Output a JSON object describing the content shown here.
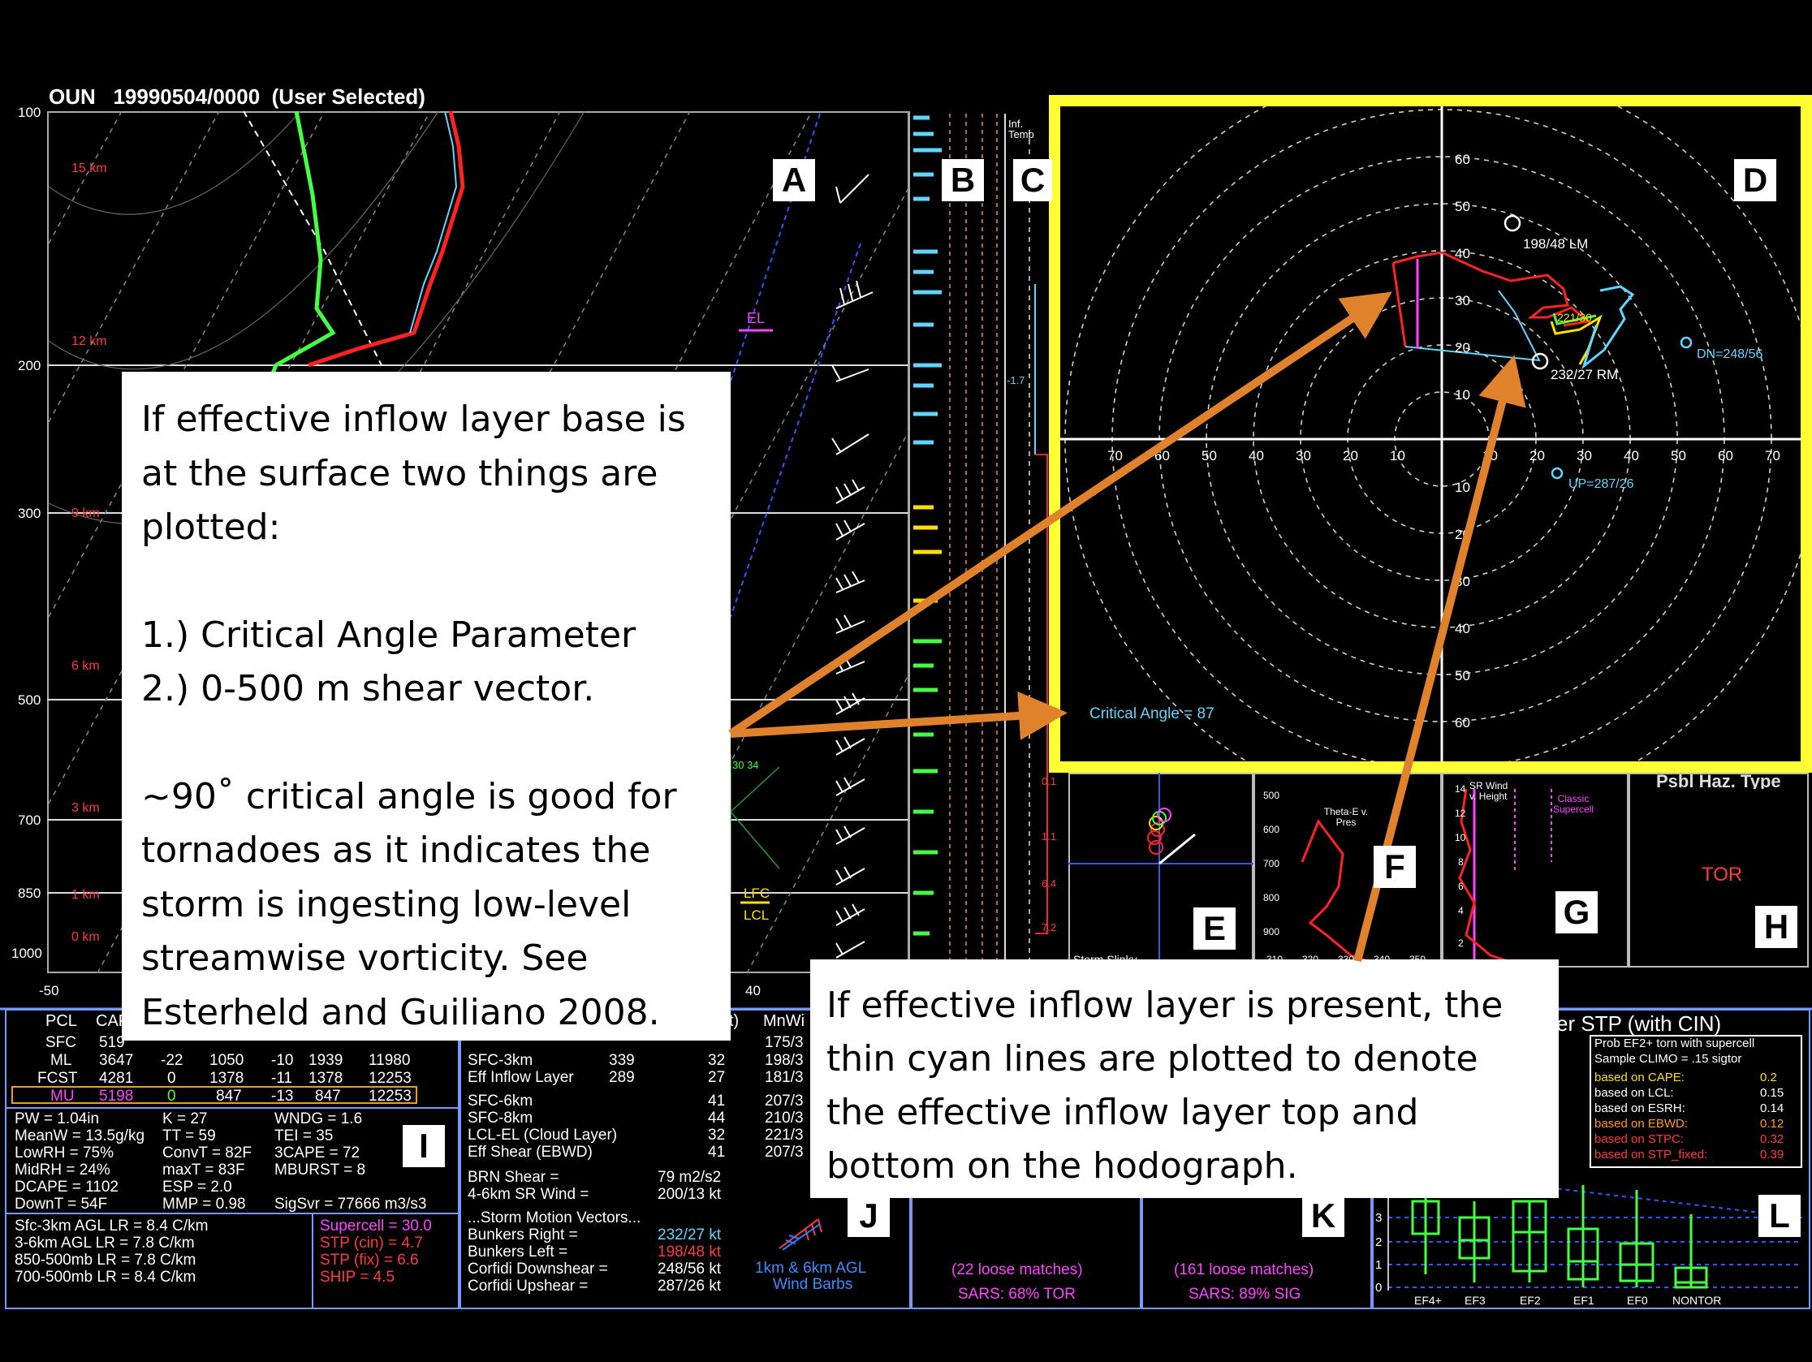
{
  "header": {
    "title": "OUN   19990504/0000  (User Selected)"
  },
  "colors": {
    "accent_yellow": "#ffff33",
    "arrow_orange": "#e0822b",
    "cyan": "#5fd6ff",
    "panel_border": "#bbbbbb"
  },
  "skewt": {
    "pressure_labels": [
      "100",
      "200",
      "300",
      "500",
      "700",
      "850",
      "1000"
    ],
    "height_labels": [
      "15 km",
      "12 km",
      "9 km",
      "6 km",
      "3 km",
      "1 km",
      "0 km"
    ],
    "temp_axis": [
      "-50",
      "40"
    ],
    "el_label": "EL",
    "lfc_label": "LFC",
    "lcl_label": "LCL",
    "hodo_small_label": "30 34"
  },
  "panel_labels": {
    "A": "A",
    "B": "B",
    "C": "C",
    "D": "D",
    "E": "E",
    "F": "F",
    "G": "G",
    "H": "H",
    "I": "I",
    "J": "J",
    "K": "K",
    "L": "L"
  },
  "column_c": {
    "header": "Inf. Temp Adv. (C",
    "value": "-1.7",
    "values": [
      "0.1",
      "1.1",
      "6.4",
      "7.2"
    ]
  },
  "hodograph": {
    "y_ticks_up": [
      "60",
      "50",
      "40",
      "30",
      "20",
      "10"
    ],
    "y_ticks_down": [
      "10",
      "20",
      "30",
      "40",
      "50",
      "60"
    ],
    "x_ticks_left": [
      "70",
      "60",
      "50",
      "40",
      "30",
      "20",
      "10"
    ],
    "x_ticks_right": [
      "10",
      "20",
      "30",
      "40",
      "50",
      "60",
      "70"
    ],
    "lm_label": "198/48 LM",
    "rm_label": "232/27 RM",
    "dn_label": "DN=248/56",
    "up_label": "UP=287/26",
    "mean_label": "221/30",
    "critical_angle": "Critical Angle = 87"
  },
  "callout_main": {
    "lines": [
      "If effective inflow layer base is",
      "at the surface two things are",
      "plotted:",
      "",
      "1.) Critical Angle Parameter",
      "2.) 0-500 m shear vector.",
      "",
      "~90˚ critical angle is good for",
      "tornadoes as it indicates the",
      "storm is ingesting low-level",
      "streamwise vorticity.  See",
      "Esterheld and Guiliano 2008."
    ]
  },
  "callout_lower": {
    "lines": [
      "If effective inflow layer is present, the",
      "thin cyan lines are plotted to denote",
      "the effective inflow layer top and",
      "bottom on the hodograph."
    ]
  },
  "panel_e": {
    "footer": "Storm Slinky"
  },
  "panel_f": {
    "title": "Theta-E v. Pres",
    "y_ticks": [
      "500",
      "600",
      "700",
      "800",
      "900"
    ],
    "x_ticks": [
      "310",
      "320",
      "330",
      "340",
      "350"
    ]
  },
  "panel_g": {
    "title": "SR Wind v. Height",
    "y_ticks": [
      "14",
      "12",
      "10",
      "8",
      "6",
      "4",
      "2"
    ],
    "legend": "Classic Supercell"
  },
  "panel_h": {
    "title": "Psbl Haz. Type",
    "value": "TOR"
  },
  "parcel_table": {
    "headers": [
      "PCL",
      "CAPE"
    ],
    "rows": [
      {
        "name": "SFC",
        "cape": "519",
        "vals": []
      },
      {
        "name": "ML",
        "cape": "3647",
        "vals": [
          "-22",
          "1050",
          "-10",
          "1939",
          "11980"
        ]
      },
      {
        "name": "FCST",
        "cape": "4281",
        "vals": [
          "0",
          "1378",
          "-11",
          "1378",
          "12253"
        ]
      },
      {
        "name": "MU",
        "cape": "5198",
        "vals": [
          "0",
          "847",
          "-13",
          "847",
          "12253"
        ]
      }
    ]
  },
  "indices": [
    [
      "PW = 1.04in",
      "K = 27",
      "WNDG = 1.6"
    ],
    [
      "MeanW = 13.5g/kg",
      "TT = 59",
      "TEI = 35"
    ],
    [
      "LowRH = 75%",
      "ConvT = 82F",
      "3CAPE = 72"
    ],
    [
      "MidRH = 24%",
      "maxT = 83F",
      "MBURST = 8"
    ],
    [
      "DCAPE = 1102",
      "ESP = 2.0",
      ""
    ],
    [
      "DownT = 54F",
      "MMP = 0.98",
      "SigSvr = 77666 m3/s3"
    ]
  ],
  "lapse_rates": [
    "Sfc-3km AGL LR = 8.4 C/km",
    "3-6km AGL LR = 7.8 C/km",
    "850-500mb LR = 7.8 C/km",
    "700-500mb LR = 8.4 C/km"
  ],
  "composites": [
    "Supercell = 30.0",
    "STP (cin) = 4.7",
    "STP (fix) = 6.6",
    "SHIP = 4.5"
  ],
  "kinematics": {
    "header_mid": "t)",
    "header_right": "MnWi",
    "rows": [
      {
        "label": "SFC-3km",
        "a": "339",
        "b": "32",
        "c": "198/3"
      },
      {
        "label": "Eff Inflow Layer",
        "a": "289",
        "b": "27",
        "c": "181/3"
      },
      {
        "label": "SFC-6km",
        "a": "",
        "b": "41",
        "c": "207/3"
      },
      {
        "label": "SFC-8km",
        "a": "",
        "b": "44",
        "c": "210/3"
      },
      {
        "label": "LCL-EL (Cloud Layer)",
        "a": "",
        "b": "32",
        "c": "221/3"
      },
      {
        "label": "Eff Shear (EBWD)",
        "a": "",
        "b": "41",
        "c": "207/3"
      }
    ],
    "top_extra": "175/3",
    "brn_label": "BRN Shear =",
    "brn_val": "79 m2/s2",
    "srw_label": "4-6km SR Wind =",
    "srw_val": "200/13 kt",
    "motion_title": "...Storm Motion Vectors...",
    "motions": [
      {
        "label": "Bunkers Right =",
        "val": "232/27 kt"
      },
      {
        "label": "Bunkers Left =",
        "val": "198/48 kt"
      },
      {
        "label": "Corfidi Downshear =",
        "val": "248/56 kt"
      },
      {
        "label": "Corfidi Upshear =",
        "val": "287/26 kt"
      }
    ]
  },
  "panel_j": {
    "caption1": "1km & 6km AGL",
    "caption2": "Wind Barbs"
  },
  "sars_tor": {
    "matches": "(22 loose matches)",
    "result": "SARS: 68% TOR"
  },
  "sars_sig": {
    "matches": "(161 loose matches)",
    "result": "SARS: 89% SIG"
  },
  "stp_panel": {
    "title": "yer STP (with CIN)",
    "box_title1": "Prob EF2+ torn with supercell",
    "box_title2": "Sample CLIMO = .15 sigtor",
    "rows": [
      {
        "label": "based on CAPE:",
        "val": "0.2"
      },
      {
        "label": "based on LCL:",
        "val": "0.15"
      },
      {
        "label": "based on ESRH:",
        "val": "0.14"
      },
      {
        "label": "based on EBWD:",
        "val": "0.12"
      },
      {
        "label": "based on STPC:",
        "val": "0.32"
      },
      {
        "label": "based on STP_fixed:",
        "val": "0.39"
      }
    ],
    "y_ticks": [
      "3",
      "2",
      "1",
      "0"
    ],
    "categories": [
      "EF4+",
      "EF3",
      "EF2",
      "EF1",
      "EF0",
      "NONTOR"
    ]
  }
}
